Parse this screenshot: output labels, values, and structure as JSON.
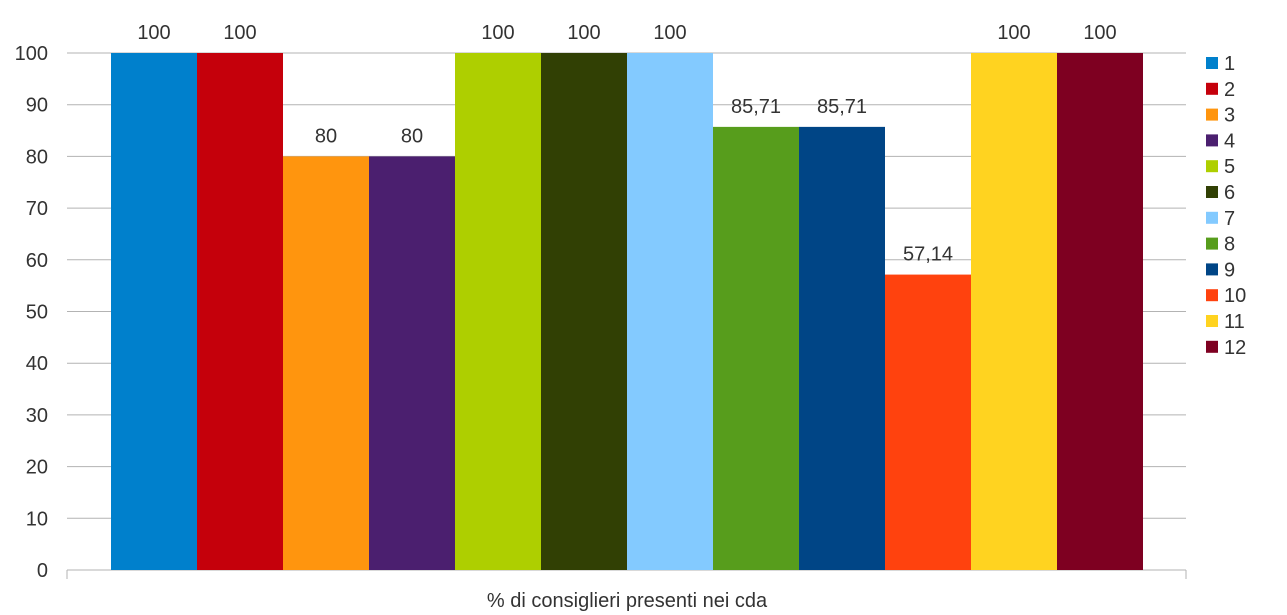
{
  "chart_data": {
    "type": "bar",
    "title": "",
    "xlabel": "% di consiglieri presenti nei cda",
    "ylabel": "",
    "ylim": [
      0,
      100
    ],
    "yticks": [
      0,
      10,
      20,
      30,
      40,
      50,
      60,
      70,
      80,
      90,
      100
    ],
    "grid": true,
    "legend_position": "right",
    "categories": [
      "% di consiglieri presenti nei cda"
    ],
    "series": [
      {
        "name": "1",
        "values": [
          100
        ],
        "label": "100",
        "color": "#0080CC"
      },
      {
        "name": "2",
        "values": [
          100
        ],
        "label": "100",
        "color": "#C5000B"
      },
      {
        "name": "3",
        "values": [
          80
        ],
        "label": "80",
        "color": "#FF950E"
      },
      {
        "name": "4",
        "values": [
          80
        ],
        "label": "80",
        "color": "#4B1F6F"
      },
      {
        "name": "5",
        "values": [
          100
        ],
        "label": "100",
        "color": "#AECF00"
      },
      {
        "name": "6",
        "values": [
          100
        ],
        "label": "100",
        "color": "#314004"
      },
      {
        "name": "7",
        "values": [
          100
        ],
        "label": "100",
        "color": "#83CAFF"
      },
      {
        "name": "8",
        "values": [
          85.71
        ],
        "label": "85,71",
        "color": "#579D1C"
      },
      {
        "name": "9",
        "values": [
          85.71
        ],
        "label": "85,71",
        "color": "#004586"
      },
      {
        "name": "10",
        "values": [
          57.14
        ],
        "label": "57,14",
        "color": "#FF420E"
      },
      {
        "name": "11",
        "values": [
          100
        ],
        "label": "100",
        "color": "#FFD320"
      },
      {
        "name": "12",
        "values": [
          100
        ],
        "label": "100",
        "color": "#7E0021"
      }
    ]
  }
}
